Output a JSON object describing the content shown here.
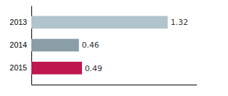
{
  "chart_data": {
    "type": "bar",
    "orientation": "horizontal",
    "categories": [
      "2013",
      "2014",
      "2015"
    ],
    "values": [
      1.32,
      0.46,
      0.49
    ],
    "value_labels": [
      "1.32",
      "0.46",
      "0.49"
    ],
    "colors": [
      "#b0c4cc",
      "#8a9ea8",
      "#bf1650"
    ],
    "xlim": [
      0,
      1.6
    ],
    "xticks": [],
    "data_labels": true,
    "tick_labels": "y"
  }
}
